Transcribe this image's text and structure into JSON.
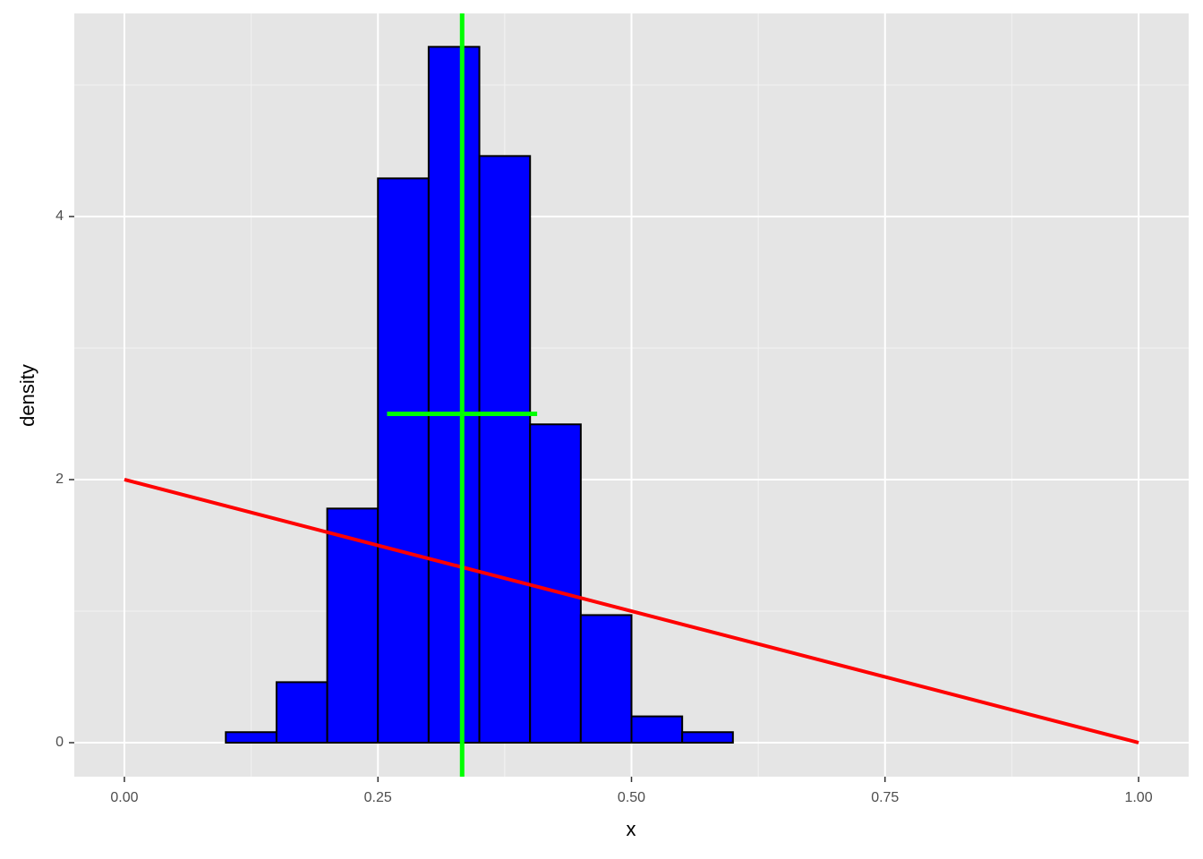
{
  "chart_data": {
    "type": "histogram",
    "xlabel": "x",
    "ylabel": "density",
    "bins": [
      0,
      0.05,
      0.1,
      0.15,
      0.2,
      0.25,
      0.3,
      0.35,
      0.4,
      0.45,
      0.5,
      0.55,
      0.6,
      0.65,
      0.7,
      0.75,
      0.8,
      0.85,
      0.9,
      0.95,
      1
    ],
    "values": [
      0,
      0,
      0.08,
      0.46,
      1.78,
      4.29,
      5.29,
      4.46,
      2.42,
      0.97,
      0.2,
      0.08,
      0,
      0,
      0,
      0,
      0,
      0,
      0,
      0
    ],
    "color": "#0000ff",
    "edgecolor": "#000000",
    "xlim": [
      -0.0494,
      1.0494
    ],
    "ylim": [
      -0.2585,
      5.544
    ],
    "xticks": [
      {
        "value": 0,
        "label": "0.00"
      },
      {
        "value": 0.25,
        "label": "0.25"
      },
      {
        "value": 0.5,
        "label": "0.50"
      },
      {
        "value": 0.75,
        "label": "0.75"
      },
      {
        "value": 1,
        "label": "1.00"
      }
    ],
    "yticks": [
      0,
      2,
      4
    ],
    "x_minor_ticks": [
      0.125,
      0.375,
      0.625,
      0.875
    ],
    "y_minor_ticks": [
      1,
      3,
      5
    ],
    "grid": true,
    "lines": [
      {
        "color": "#ff0000",
        "x": [
          0,
          1
        ],
        "y": [
          2,
          0
        ]
      }
    ],
    "vline": {
      "x": 0.333,
      "color": "#00ff00"
    },
    "hsegment": {
      "y": 2.5,
      "x": [
        0.259,
        0.407
      ],
      "color": "#00ff00"
    }
  }
}
